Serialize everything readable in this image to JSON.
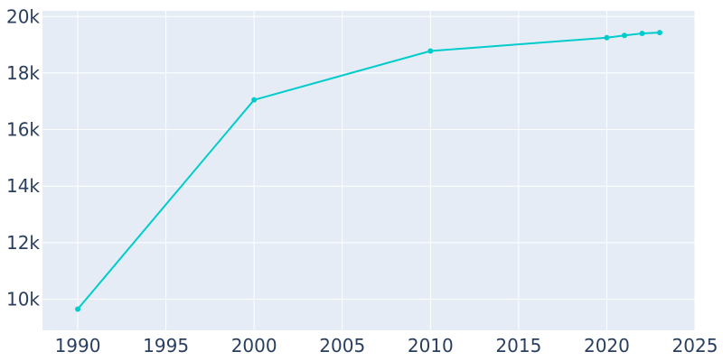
{
  "chart_data": {
    "type": "line",
    "title": "",
    "xlabel": "",
    "ylabel": "",
    "x": [
      1990,
      2000,
      2010,
      2020,
      2021,
      2022,
      2023
    ],
    "series": [
      {
        "values": [
          9650,
          17050,
          18780,
          19250,
          19330,
          19400,
          19430
        ]
      }
    ],
    "xlim": [
      1988,
      2025
    ],
    "ylim": [
      8900,
      20200
    ],
    "x_ticks": [
      1990,
      1995,
      2000,
      2005,
      2010,
      2015,
      2020,
      2025
    ],
    "x_tick_labels": [
      "1990",
      "1995",
      "2000",
      "2005",
      "2010",
      "2015",
      "2020",
      "2025"
    ],
    "y_ticks": [
      10000,
      12000,
      14000,
      16000,
      18000,
      20000
    ],
    "y_tick_labels": [
      "10k",
      "12k",
      "14k",
      "16k",
      "18k",
      "20k"
    ],
    "grid": true,
    "legend": false,
    "colors": {
      "line": "#00cccc",
      "plot_background": "#e5ecf6",
      "grid": "#ffffff",
      "tick_text": "#2a3f5f"
    }
  }
}
